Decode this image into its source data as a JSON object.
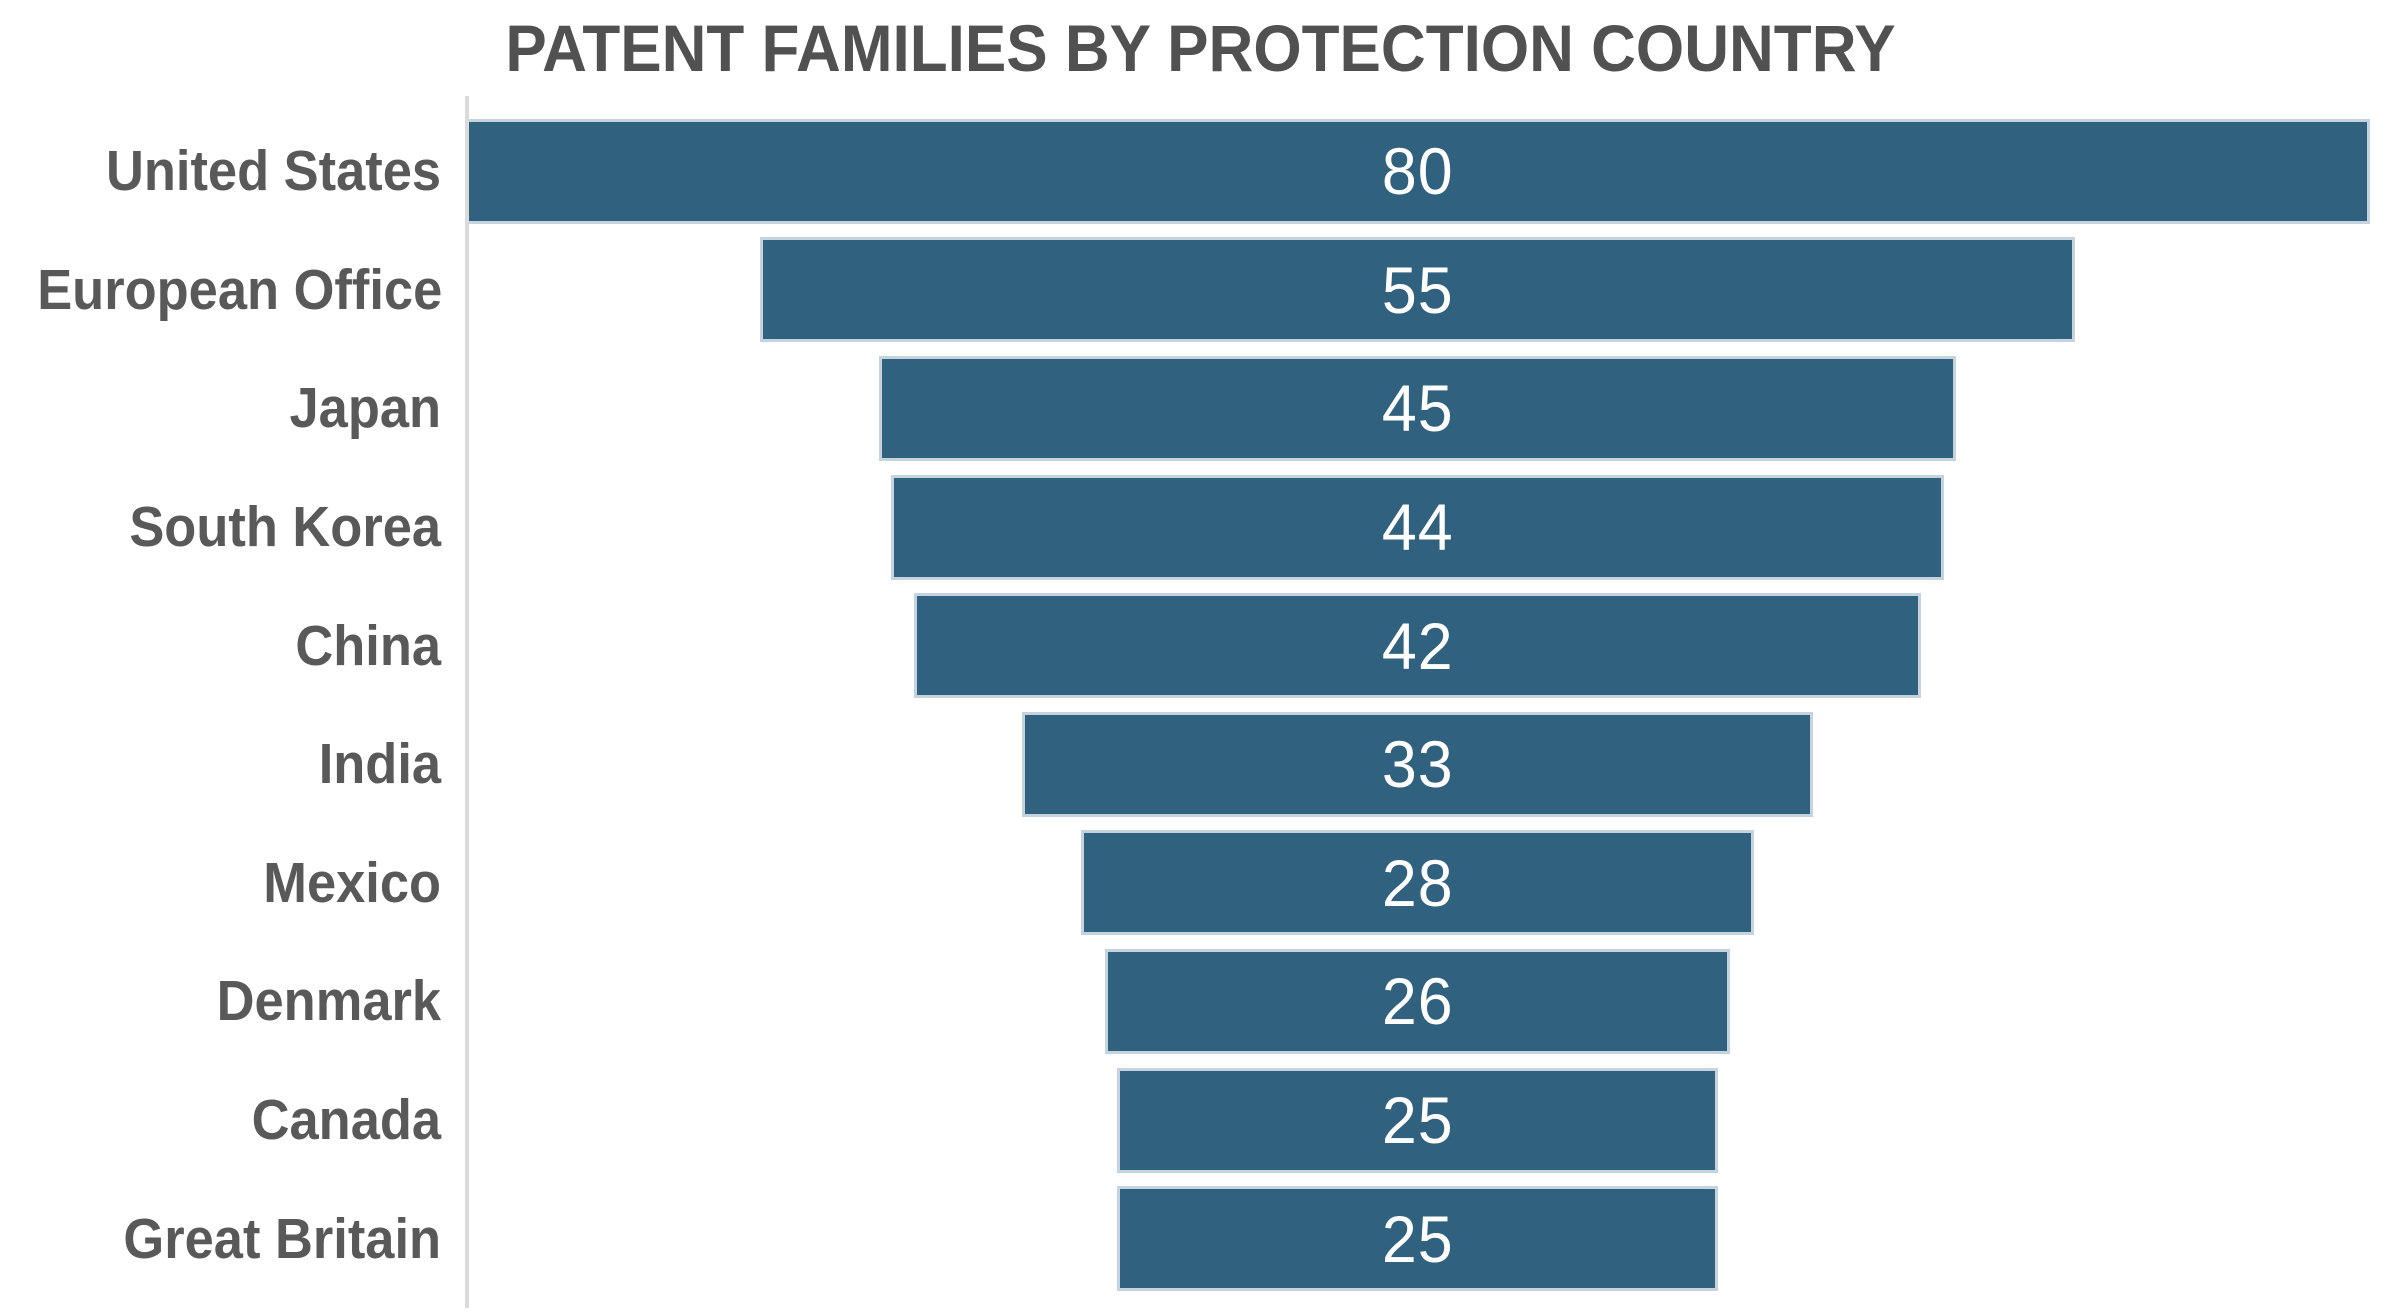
{
  "chart_data": {
    "type": "bar",
    "subtype": "centered-funnel",
    "orientation": "horizontal",
    "title": "PATENT FAMILIES BY PROTECTION COUNTRY",
    "categories": [
      "United States",
      "European Office",
      "Japan",
      "South Korea",
      "China",
      "India",
      "Mexico",
      "Denmark",
      "Canada",
      "Great Britain"
    ],
    "values": [
      80,
      55,
      45,
      44,
      42,
      33,
      28,
      26,
      25,
      25
    ],
    "xlabel": "",
    "ylabel": "",
    "xlim": [
      0,
      80
    ],
    "value_labels": "inside-center",
    "legend": false,
    "grid": false,
    "colors": {
      "bar_fill": "#30617F",
      "bar_border": "#C5D3DF",
      "category_label": "#595959",
      "value_label": "#FFFFFF",
      "axis_line": "#DBDBDB",
      "title": "#515151",
      "background": "#FFFFFF"
    }
  }
}
